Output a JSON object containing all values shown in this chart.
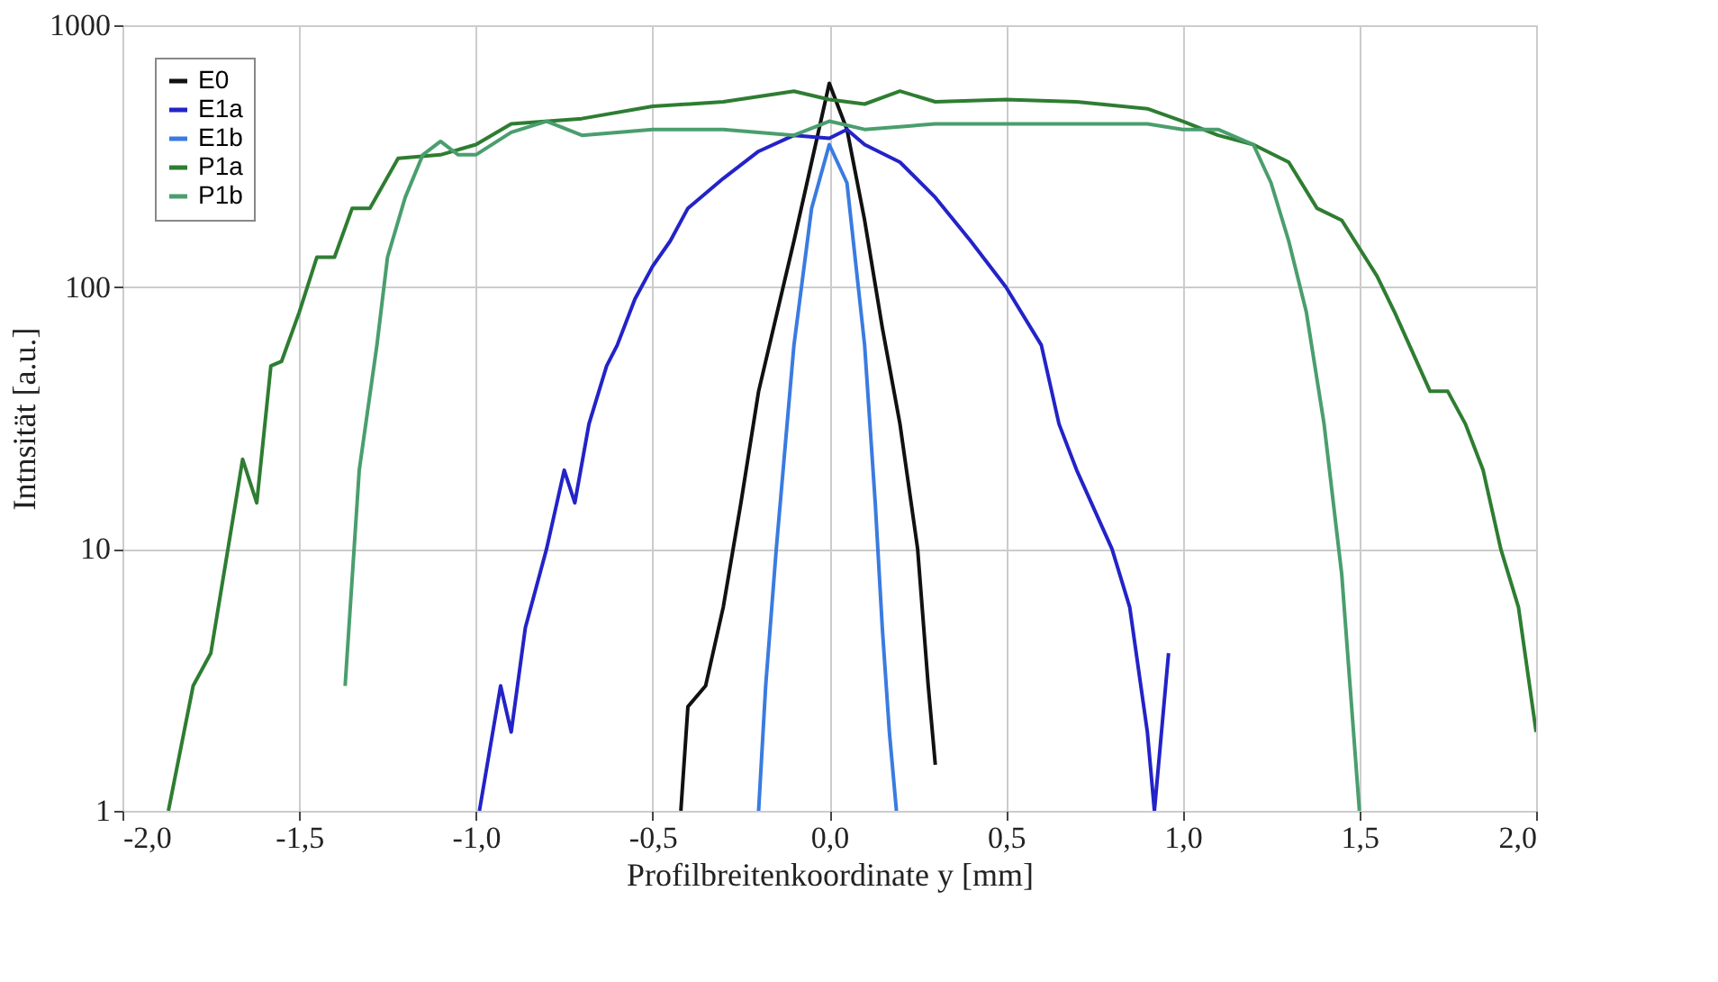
{
  "chart_data": {
    "type": "line",
    "xlabel": "Profilbreitenkoordinate y [mm]",
    "ylabel": "Intnsität [a.u.]",
    "log": "y",
    "grid": true,
    "legend": "top left",
    "line_style": "solid",
    "marker": "none",
    "xlim": [
      -2.0,
      2.0
    ],
    "ylim": [
      1,
      1000
    ],
    "xticks": [
      {
        "value": -2.0,
        "label": "-2,0"
      },
      {
        "value": -1.5,
        "label": "-1,5"
      },
      {
        "value": -1.0,
        "label": "-1,0"
      },
      {
        "value": -0.5,
        "label": "-0,5"
      },
      {
        "value": 0.0,
        "label": "0,0"
      },
      {
        "value": 0.5,
        "label": "0,5"
      },
      {
        "value": 1.0,
        "label": "1,0"
      },
      {
        "value": 1.5,
        "label": "1,5"
      },
      {
        "value": 2.0,
        "label": "2,0"
      }
    ],
    "yticks": [
      1,
      10,
      100,
      1000
    ],
    "series": [
      {
        "name": "E0",
        "color": "#111111",
        "x": [
          -0.42,
          -0.4,
          -0.35,
          -0.3,
          -0.25,
          -0.2,
          -0.1,
          -0.05,
          0.0,
          0.05,
          0.1,
          0.15,
          0.2,
          0.25,
          0.28,
          0.3
        ],
        "values": [
          1,
          2.5,
          3,
          6,
          15,
          40,
          150,
          300,
          600,
          400,
          180,
          70,
          30,
          10,
          3,
          1.5
        ]
      },
      {
        "name": "E1a",
        "color": "#2323c8",
        "x": [
          -0.99,
          -0.93,
          -0.9,
          -0.86,
          -0.8,
          -0.75,
          -0.72,
          -0.68,
          -0.63,
          -0.6,
          -0.55,
          -0.5,
          -0.45,
          -0.4,
          -0.3,
          -0.2,
          -0.1,
          0.0,
          0.05,
          0.1,
          0.2,
          0.3,
          0.4,
          0.5,
          0.6,
          0.65,
          0.7,
          0.8,
          0.85,
          0.9,
          0.92,
          0.96
        ],
        "values": [
          1,
          3,
          2,
          5,
          10,
          20,
          15,
          30,
          50,
          60,
          90,
          120,
          150,
          200,
          260,
          330,
          380,
          370,
          400,
          350,
          300,
          220,
          150,
          100,
          60,
          30,
          20,
          10,
          6,
          2,
          1,
          4
        ]
      },
      {
        "name": "E1b",
        "color": "#3a7be0",
        "x": [
          -0.2,
          -0.18,
          -0.15,
          -0.1,
          -0.05,
          0.0,
          0.05,
          0.1,
          0.13,
          0.15,
          0.17,
          0.19
        ],
        "values": [
          1,
          3,
          10,
          60,
          200,
          350,
          250,
          60,
          15,
          5,
          2,
          1
        ]
      },
      {
        "name": "P1a",
        "color": "#2e7d32",
        "x": [
          -1.87,
          -1.8,
          -1.75,
          -1.68,
          -1.66,
          -1.62,
          -1.58,
          -1.55,
          -1.5,
          -1.45,
          -1.4,
          -1.35,
          -1.3,
          -1.22,
          -1.1,
          -1.0,
          -0.9,
          -0.7,
          -0.5,
          -0.3,
          -0.1,
          0.0,
          0.1,
          0.2,
          0.3,
          0.5,
          0.7,
          0.9,
          1.0,
          1.1,
          1.2,
          1.3,
          1.38,
          1.45,
          1.55,
          1.6,
          1.7,
          1.75,
          1.8,
          1.85,
          1.9,
          1.95,
          2.0
        ],
        "values": [
          1,
          3,
          4,
          15,
          22,
          15,
          50,
          52,
          80,
          130,
          130,
          200,
          200,
          310,
          320,
          350,
          420,
          440,
          490,
          510,
          560,
          520,
          500,
          560,
          510,
          520,
          510,
          480,
          430,
          380,
          350,
          300,
          200,
          180,
          110,
          80,
          40,
          40,
          30,
          20,
          10,
          6,
          2
        ]
      },
      {
        "name": "P1b",
        "color": "#4a9e6e",
        "x": [
          -1.37,
          -1.33,
          -1.28,
          -1.25,
          -1.2,
          -1.15,
          -1.1,
          -1.05,
          -1.0,
          -0.9,
          -0.8,
          -0.7,
          -0.5,
          -0.3,
          -0.1,
          0.0,
          0.1,
          0.3,
          0.5,
          0.7,
          0.9,
          1.0,
          1.1,
          1.2,
          1.25,
          1.3,
          1.35,
          1.4,
          1.45,
          1.5
        ],
        "values": [
          3,
          20,
          60,
          130,
          220,
          320,
          360,
          320,
          320,
          390,
          430,
          380,
          400,
          400,
          380,
          430,
          400,
          420,
          420,
          420,
          420,
          400,
          400,
          350,
          250,
          150,
          80,
          30,
          8,
          1
        ]
      }
    ]
  }
}
